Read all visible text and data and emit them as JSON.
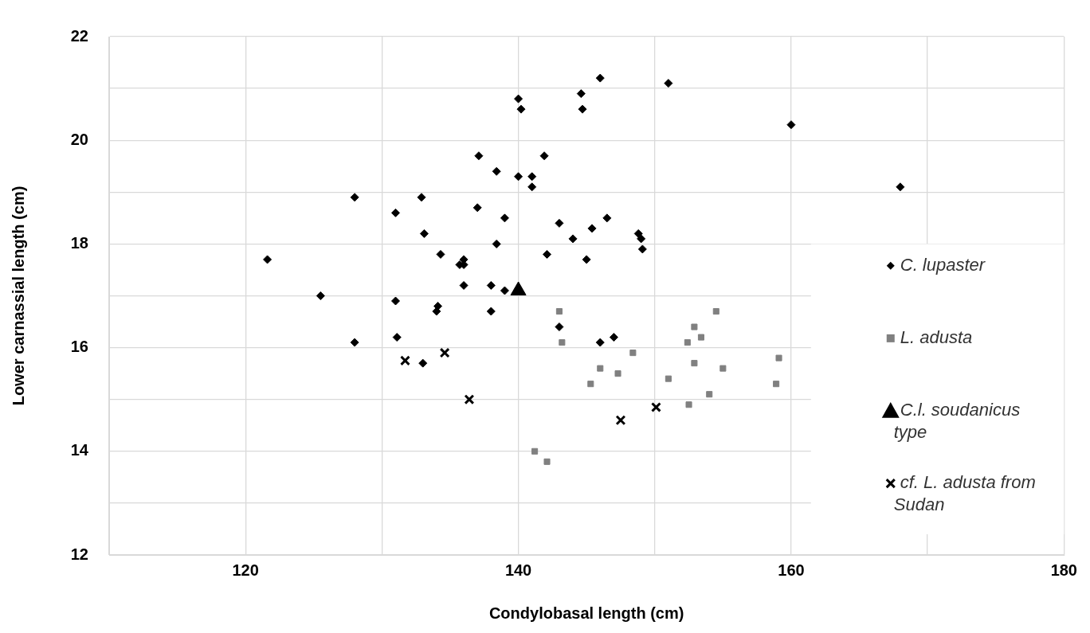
{
  "chart_data": {
    "type": "scatter",
    "xlabel": "Condylobasal length (cm)",
    "ylabel": "Lower carnassial length (cm)",
    "xlim": [
      110,
      180
    ],
    "xticks": [
      {
        "value": 110,
        "label": null
      },
      120,
      {
        "value": 130,
        "label": null
      },
      140,
      {
        "value": 150,
        "label": null
      },
      160,
      {
        "value": 170,
        "label": null
      },
      180
    ],
    "ylim": [
      12,
      22
    ],
    "yticks": [
      12,
      {
        "value": 13,
        "label": null
      },
      14,
      {
        "value": 15,
        "label": null
      },
      16,
      {
        "value": 17,
        "label": null
      },
      18,
      {
        "value": 19,
        "label": null
      },
      20,
      {
        "value": 21,
        "label": null
      },
      22
    ],
    "grid": true,
    "legend": "right",
    "series": [
      {
        "name": "C. lupaster",
        "color": "#000000",
        "marker": "diamond",
        "x": [
          140.0,
          140.2,
          137.1,
          141.9,
          138.4,
          140.0,
          141.0,
          141.0,
          128.0,
          132.9,
          131.0,
          137.0,
          139.0,
          143.0,
          133.1,
          138.4,
          121.6,
          134.3,
          136.0,
          135.7,
          136.0,
          142.1,
          136.0,
          138.0,
          139.0,
          125.5,
          131.0,
          134.1,
          134.0,
          138.0,
          143.0,
          128.0,
          131.1,
          133.0,
          146.0,
          144.6,
          144.7,
          151.0,
          160.0,
          168.0,
          144.0,
          145.4,
          146.5,
          148.8,
          149.0,
          149.1,
          145.0,
          146.0,
          147.0
        ],
        "values": [
          20.8,
          20.6,
          19.7,
          19.7,
          19.4,
          19.3,
          19.3,
          19.1,
          18.9,
          18.9,
          18.6,
          18.7,
          18.5,
          18.4,
          18.2,
          18.0,
          17.7,
          17.8,
          17.7,
          17.6,
          17.6,
          17.8,
          17.2,
          17.2,
          17.1,
          17.0,
          16.9,
          16.8,
          16.7,
          16.7,
          16.4,
          16.1,
          16.2,
          15.7,
          21.2,
          20.9,
          20.6,
          21.1,
          20.3,
          19.1,
          18.1,
          18.3,
          18.5,
          18.2,
          18.1,
          17.9,
          17.7,
          16.1,
          16.2
        ]
      },
      {
        "name": "L. adusta",
        "color": "#808080",
        "marker": "square",
        "x": [
          143.0,
          143.2,
          141.2,
          142.1,
          148.4,
          146.0,
          147.3,
          145.3,
          151.0,
          154.5,
          152.9,
          153.4,
          152.4,
          152.9,
          155.0,
          154.0,
          152.5,
          159.1,
          158.9
        ],
        "values": [
          16.7,
          16.1,
          14.0,
          13.8,
          15.9,
          15.6,
          15.5,
          15.3,
          15.4,
          16.7,
          16.4,
          16.2,
          16.1,
          15.7,
          15.6,
          15.1,
          14.9,
          15.8,
          15.3
        ]
      },
      {
        "name": "C.l. soudanicus type",
        "color": "#000000",
        "marker": "triangle",
        "x": [
          140.0
        ],
        "values": [
          17.1
        ]
      },
      {
        "name": "cf. L. adusta from Sudan",
        "color": "#000000",
        "marker": "cross",
        "x": [
          131.7,
          134.6,
          136.4,
          147.5,
          150.1
        ],
        "values": [
          15.75,
          15.9,
          15.0,
          14.6,
          14.85
        ]
      }
    ]
  }
}
